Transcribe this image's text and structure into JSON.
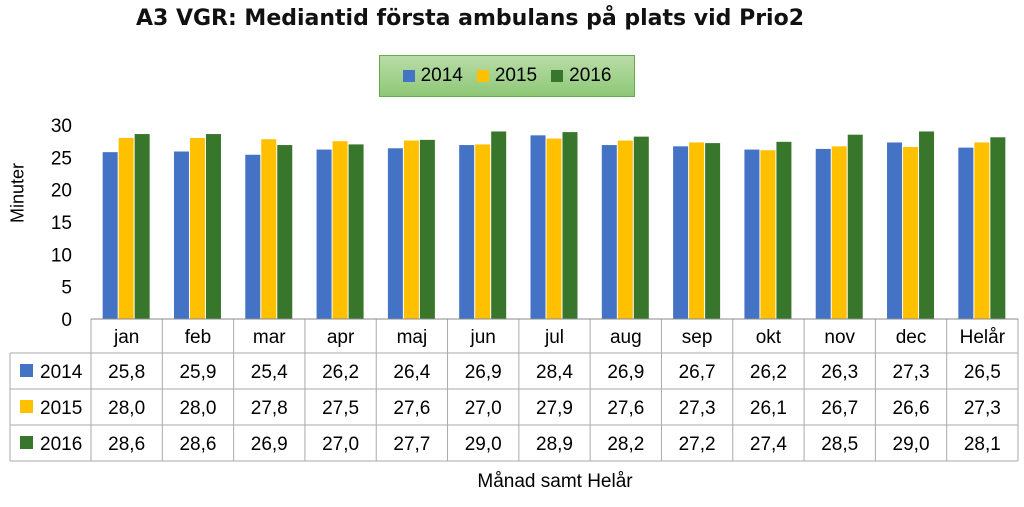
{
  "chart_data": {
    "type": "bar",
    "title": "A3 VGR: Mediantid första ambulans på plats vid Prio2",
    "xlabel": "Månad samt Helår",
    "ylabel": "Minuter",
    "ylim": [
      0,
      30
    ],
    "yticks": [
      "0",
      "5",
      "10",
      "15",
      "20",
      "25",
      "30"
    ],
    "legend_position": "top-center",
    "grid": false,
    "categories": [
      "jan",
      "feb",
      "mar",
      "apr",
      "maj",
      "jun",
      "jul",
      "aug",
      "sep",
      "okt",
      "nov",
      "dec",
      "Helår"
    ],
    "series": [
      {
        "name": "2014",
        "color": "#4472c4",
        "values": [
          25.8,
          25.9,
          25.4,
          26.2,
          26.4,
          26.9,
          28.4,
          26.9,
          26.7,
          26.2,
          26.3,
          27.3,
          26.5
        ],
        "labels": [
          "25,8",
          "25,9",
          "25,4",
          "26,2",
          "26,4",
          "26,9",
          "28,4",
          "26,9",
          "26,7",
          "26,2",
          "26,3",
          "27,3",
          "26,5"
        ]
      },
      {
        "name": "2015",
        "color": "#ffc000",
        "values": [
          28.0,
          28.0,
          27.8,
          27.5,
          27.6,
          27.0,
          27.9,
          27.6,
          27.3,
          26.1,
          26.7,
          26.6,
          27.3
        ],
        "labels": [
          "28,0",
          "28,0",
          "27,8",
          "27,5",
          "27,6",
          "27,0",
          "27,9",
          "27,6",
          "27,3",
          "26,1",
          "26,7",
          "26,6",
          "27,3"
        ]
      },
      {
        "name": "2016",
        "color": "#38762b",
        "values": [
          28.6,
          28.6,
          26.9,
          27.0,
          27.7,
          29.0,
          28.9,
          28.2,
          27.2,
          27.4,
          28.5,
          29.0,
          28.1
        ],
        "labels": [
          "28,6",
          "28,6",
          "26,9",
          "27,0",
          "27,7",
          "29,0",
          "28,9",
          "28,2",
          "27,2",
          "27,4",
          "28,5",
          "29,0",
          "28,1"
        ]
      }
    ]
  }
}
